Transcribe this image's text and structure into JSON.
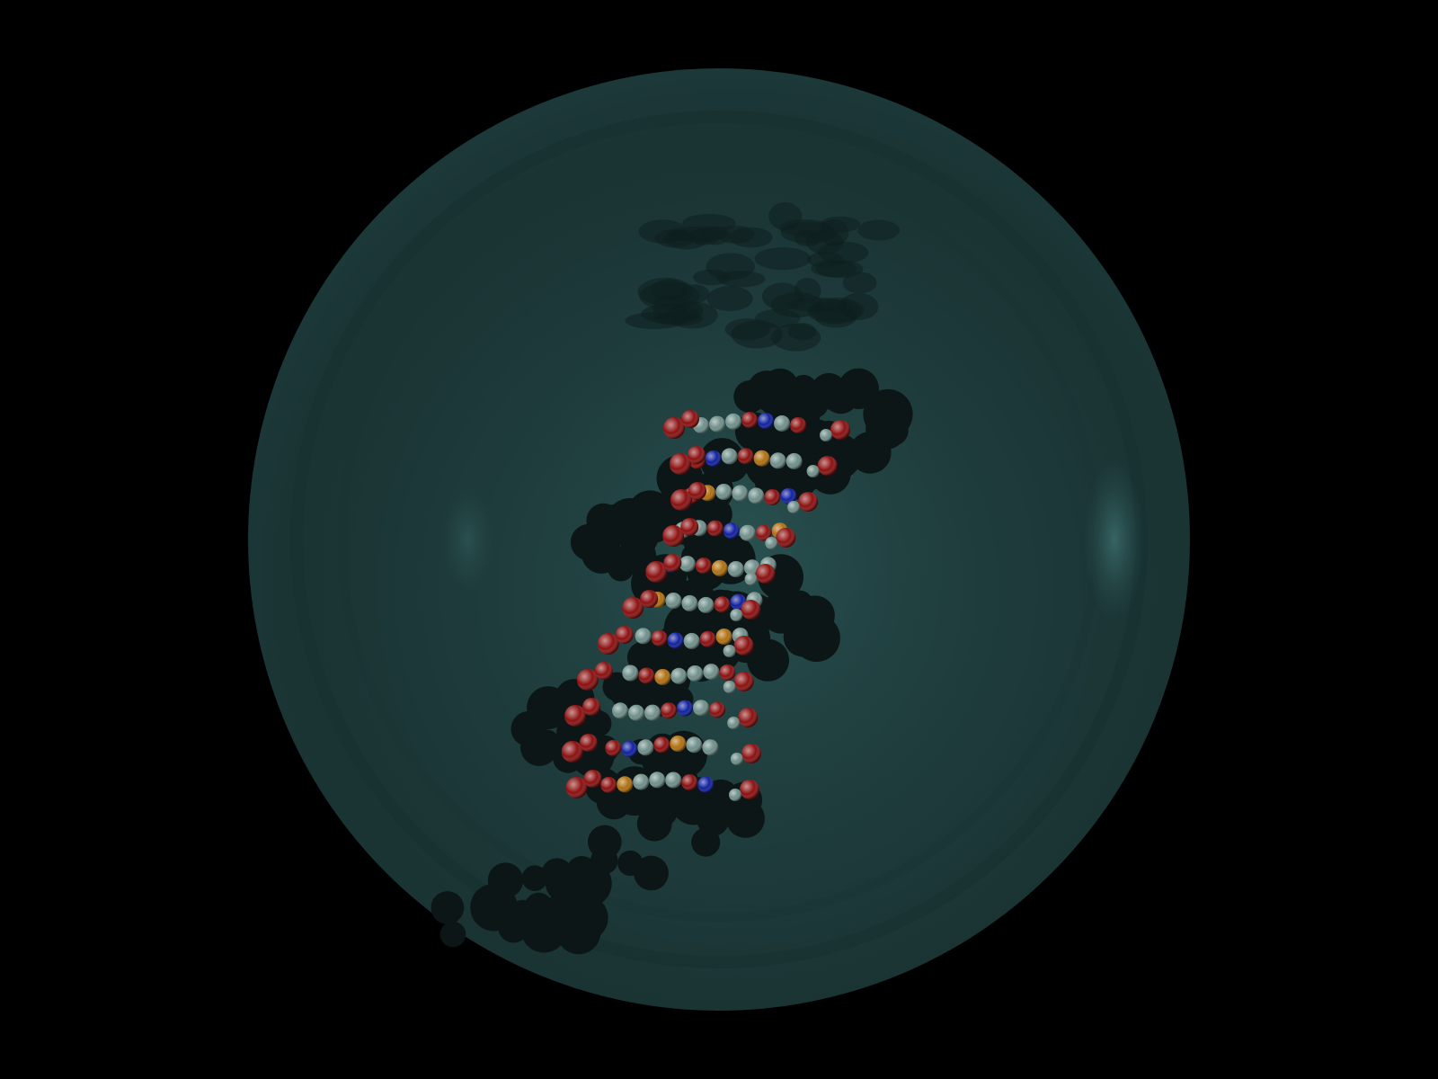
{
  "scene": {
    "background_color": "#000000",
    "sphere_color": "#1f3c3c",
    "sphere_shadow_color": "#0f1f1f",
    "molecule_shadow_color": "#0d1616",
    "atom_colors": {
      "carbon": "#6f8f8a",
      "oxygen": "#8c1010",
      "nitrogen": "#1020a0",
      "phosphorus": "#b07010"
    },
    "molecule_name": "dna-double-helix"
  }
}
